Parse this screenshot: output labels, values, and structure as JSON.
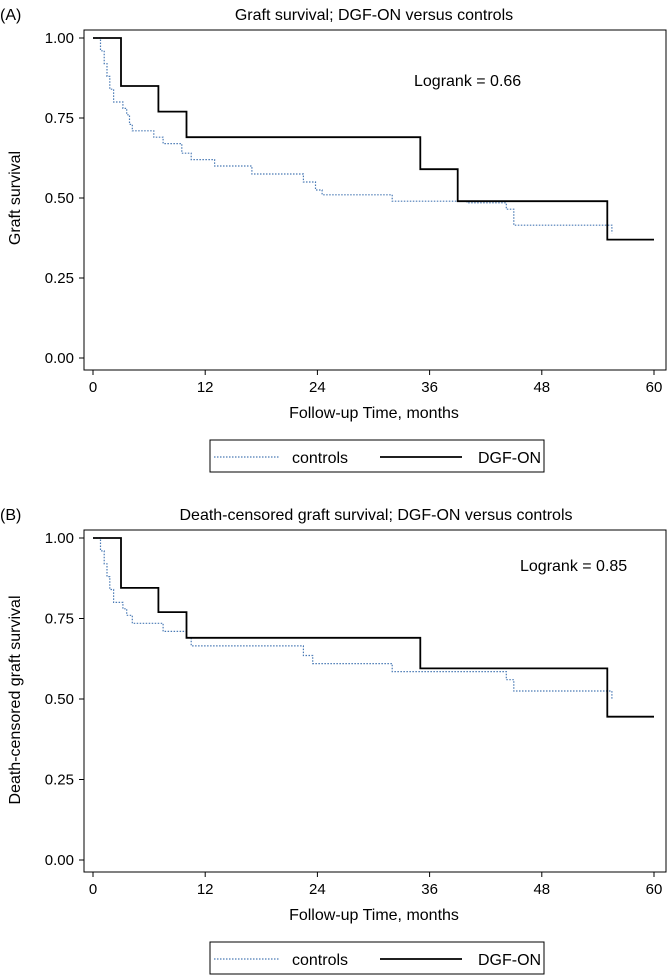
{
  "chart_data": [
    {
      "type": "line",
      "panel_label": "(A)",
      "title": "Graft survival; DGF-ON versus controls",
      "xlabel": "Follow-up Time, months",
      "ylabel": "Graft survival",
      "xlim": [
        0,
        60
      ],
      "ylim": [
        0,
        1
      ],
      "xticks": [
        0,
        12,
        24,
        36,
        48,
        60
      ],
      "yticks": [
        "0.00",
        "0.25",
        "0.50",
        "0.75",
        "1.00"
      ],
      "annotation": "Logrank = 0.66",
      "legend": {
        "position": "bottom",
        "entries": [
          "controls",
          "DGF-ON"
        ]
      },
      "series": [
        {
          "name": "controls",
          "style": "dotted",
          "color": "#4a7ab5",
          "points": [
            [
              0,
              1
            ],
            [
              0.8,
              0.96
            ],
            [
              1.2,
              0.92
            ],
            [
              1.5,
              0.88
            ],
            [
              1.8,
              0.84
            ],
            [
              2.2,
              0.8
            ],
            [
              3.2,
              0.78
            ],
            [
              3.6,
              0.76
            ],
            [
              3.9,
              0.73
            ],
            [
              4.2,
              0.71
            ],
            [
              6.5,
              0.69
            ],
            [
              7.5,
              0.67
            ],
            [
              9.5,
              0.64
            ],
            [
              10.5,
              0.62
            ],
            [
              13,
              0.6
            ],
            [
              17,
              0.575
            ],
            [
              22.5,
              0.55
            ],
            [
              23.8,
              0.525
            ],
            [
              24.5,
              0.51
            ],
            [
              32,
              0.49
            ],
            [
              40,
              0.485
            ],
            [
              44.2,
              0.465
            ],
            [
              45,
              0.415
            ],
            [
              55.5,
              0.39
            ]
          ]
        },
        {
          "name": "DGF-ON",
          "style": "solid",
          "color": "#000000",
          "points": [
            [
              0,
              1
            ],
            [
              3,
              0.85
            ],
            [
              7,
              0.77
            ],
            [
              10,
              0.69
            ],
            [
              35,
              0.59
            ],
            [
              39,
              0.49
            ],
            [
              55,
              0.37
            ],
            [
              60,
              0.37
            ]
          ]
        }
      ]
    },
    {
      "type": "line",
      "panel_label": "(B)",
      "title": "Death-censored graft survival; DGF-ON versus controls",
      "xlabel": "Follow-up Time, months",
      "ylabel": "Death-censored graft survival",
      "xlim": [
        0,
        60
      ],
      "ylim": [
        0,
        1
      ],
      "xticks": [
        0,
        12,
        24,
        36,
        48,
        60
      ],
      "yticks": [
        "0.00",
        "0.25",
        "0.50",
        "0.75",
        "1.00"
      ],
      "annotation": "Logrank = 0.85",
      "legend": {
        "position": "bottom",
        "entries": [
          "controls",
          "DGF-ON"
        ]
      },
      "series": [
        {
          "name": "controls",
          "style": "dotted",
          "color": "#4a7ab5",
          "points": [
            [
              0,
              1
            ],
            [
              0.8,
              0.96
            ],
            [
              1.2,
              0.92
            ],
            [
              1.5,
              0.88
            ],
            [
              1.8,
              0.84
            ],
            [
              2.2,
              0.8
            ],
            [
              3.2,
              0.78
            ],
            [
              3.6,
              0.76
            ],
            [
              4.2,
              0.735
            ],
            [
              7.5,
              0.71
            ],
            [
              10,
              0.69
            ],
            [
              10.5,
              0.665
            ],
            [
              22.5,
              0.635
            ],
            [
              23.5,
              0.61
            ],
            [
              32,
              0.585
            ],
            [
              44.2,
              0.56
            ],
            [
              45,
              0.525
            ],
            [
              55.5,
              0.5
            ]
          ]
        },
        {
          "name": "DGF-ON",
          "style": "solid",
          "color": "#000000",
          "points": [
            [
              0,
              1
            ],
            [
              3,
              0.845
            ],
            [
              7,
              0.77
            ],
            [
              10,
              0.69
            ],
            [
              35,
              0.595
            ],
            [
              55,
              0.445
            ],
            [
              60,
              0.445
            ]
          ]
        }
      ]
    }
  ]
}
